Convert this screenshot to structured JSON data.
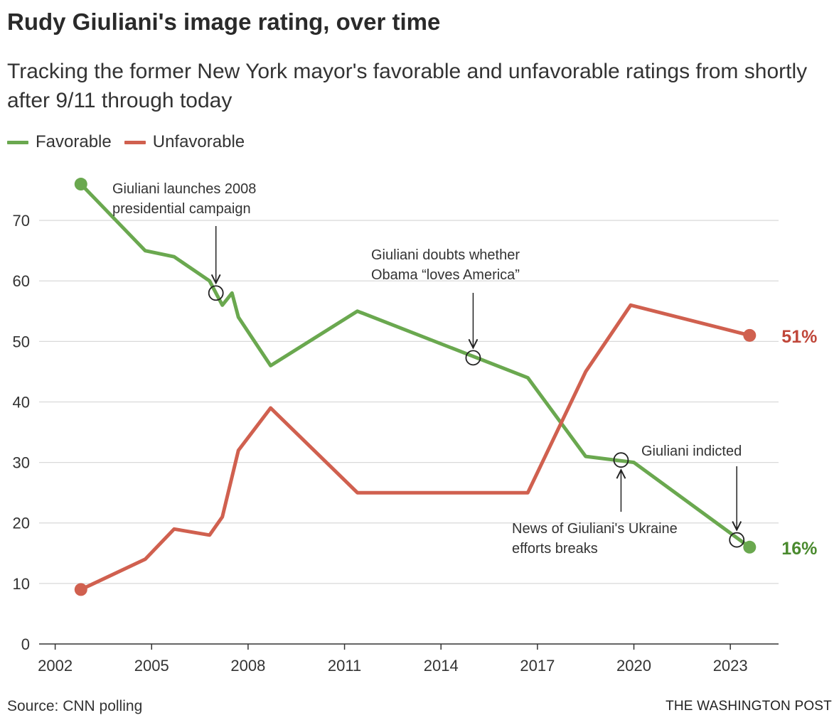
{
  "header": {
    "title": "Rudy Giuliani's image rating, over time",
    "subtitle": "Tracking the former New York mayor's favorable and unfavorable ratings from shortly after 9/11 through today"
  },
  "legend": {
    "favorable_label": "Favorable",
    "unfavorable_label": "Unfavorable"
  },
  "colors": {
    "favorable": "#6aa84f",
    "unfavorable": "#d0604f",
    "favorable_label_text": "#4a8a2e",
    "unfavorable_label_text": "#c0473a",
    "grid": "#d9d9d9"
  },
  "footer": {
    "source": "Source: CNN polling",
    "credit": "THE WASHINGTON POST"
  },
  "chart_data": {
    "type": "line",
    "x_ticks": [
      "2002",
      "2005",
      "2008",
      "2011",
      "2014",
      "2017",
      "2020",
      "2023"
    ],
    "y_ticks": [
      0,
      10,
      20,
      30,
      40,
      50,
      60,
      70
    ],
    "xlim": [
      2001.5,
      2024.5
    ],
    "ylim": [
      0,
      78
    ],
    "grid": true,
    "series": [
      {
        "name": "Favorable",
        "end_label": "16%",
        "points": [
          [
            2002.8,
            76
          ],
          [
            2004.8,
            65
          ],
          [
            2005.7,
            64
          ],
          [
            2006.8,
            60
          ],
          [
            2007.2,
            56
          ],
          [
            2007.5,
            58
          ],
          [
            2007.7,
            54
          ],
          [
            2008.7,
            46
          ],
          [
            2011.4,
            55
          ],
          [
            2016.7,
            44
          ],
          [
            2018.5,
            31
          ],
          [
            2020.0,
            30
          ],
          [
            2023.6,
            16
          ]
        ]
      },
      {
        "name": "Unfavorable",
        "end_label": "51%",
        "points": [
          [
            2002.8,
            9
          ],
          [
            2004.8,
            14
          ],
          [
            2005.7,
            19
          ],
          [
            2006.8,
            18
          ],
          [
            2007.2,
            21
          ],
          [
            2007.7,
            32
          ],
          [
            2008.7,
            39
          ],
          [
            2011.4,
            25
          ],
          [
            2016.7,
            25
          ],
          [
            2018.5,
            45
          ],
          [
            2019.9,
            56
          ],
          [
            2023.6,
            51
          ]
        ]
      }
    ],
    "annotations": [
      {
        "text": [
          "Giuliani launches 2008",
          "presidential campaign"
        ],
        "x": 2007.0,
        "y": 58,
        "placement": "above"
      },
      {
        "text": [
          "Giuliani doubts whether",
          "Obama “loves America”"
        ],
        "x": 2015.0,
        "y": 47.3,
        "placement": "above"
      },
      {
        "text": [
          "News of Giuliani's Ukraine",
          "efforts breaks"
        ],
        "x": 2019.6,
        "y": 30.4,
        "placement": "below"
      },
      {
        "text": [
          "Giuliani indicted"
        ],
        "x": 2023.2,
        "y": 17.2,
        "placement": "above"
      }
    ]
  }
}
